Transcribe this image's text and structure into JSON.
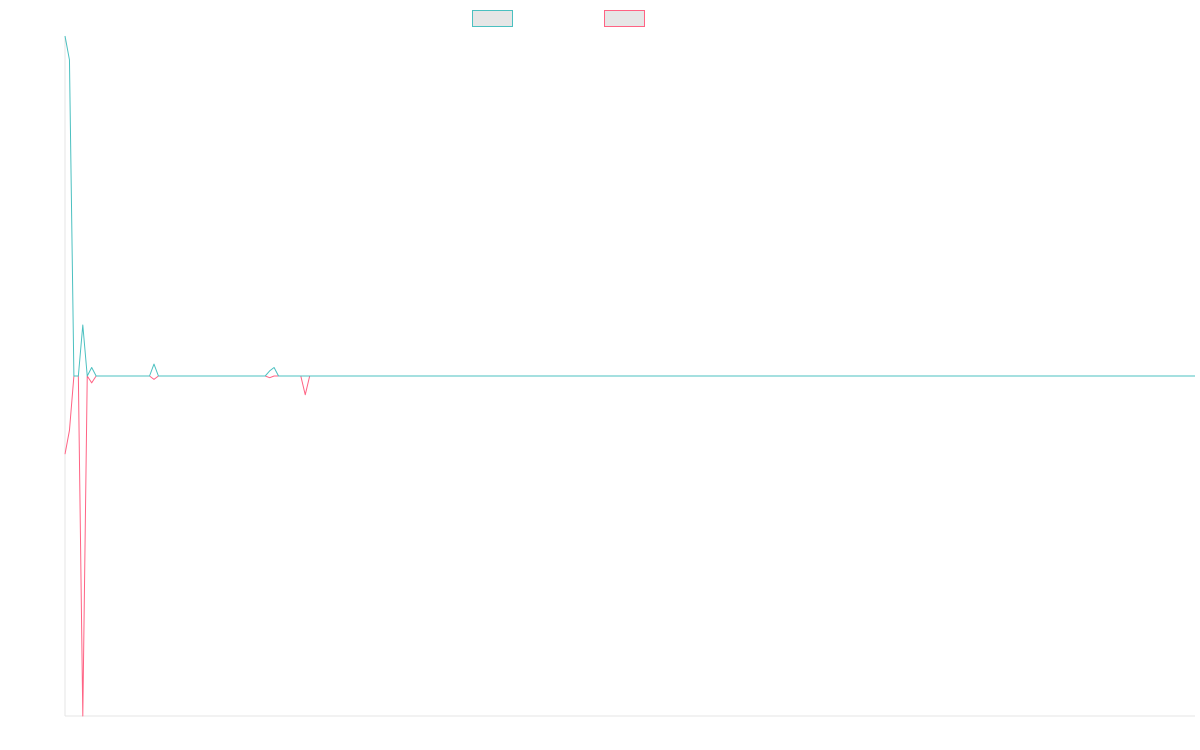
{
  "chart_data": {
    "type": "line",
    "title": "",
    "xlabel": "",
    "ylabel": "",
    "legend_placement": "top-center",
    "grid": false,
    "xlim": [
      0,
      254
    ],
    "ylim": [
      -1,
      1
    ],
    "colors": {
      "series_a": "#4bc0c0",
      "series_b": "#ff6384",
      "legend_fill": "#e6e6e6",
      "axis": "#e4e4e4"
    },
    "series": [
      {
        "key": "series_a",
        "values": [
          1.0,
          0.93,
          0.0,
          0.0,
          0.15,
          0.0,
          0.025,
          0.0,
          0.0,
          0.0,
          0.0,
          0.0,
          0.0,
          0.0,
          0.0,
          0.0,
          0.0,
          0.0,
          0.0,
          0.0,
          0.035,
          0.0,
          0.0,
          0.0,
          0.0,
          0.0,
          0.0,
          0.0,
          0.0,
          0.0,
          0.0,
          0.0,
          0.0,
          0.0,
          0.0,
          0.0,
          0.0,
          0.0,
          0.0,
          0.0,
          0.0,
          0.0,
          0.0,
          0.0,
          0.0,
          0.0,
          0.015,
          0.025,
          0.0,
          0.0,
          0.0,
          0.0,
          0.0,
          0.0,
          0.0,
          0.0,
          0.0,
          0.0,
          0.0,
          0.0
        ]
      },
      {
        "key": "series_b",
        "values": [
          -0.23,
          -0.16,
          0.0,
          0.0,
          -1.0,
          0.0,
          -0.02,
          0.0,
          0.0,
          0.0,
          0.0,
          0.0,
          0.0,
          0.0,
          0.0,
          0.0,
          0.0,
          0.0,
          0.0,
          0.0,
          -0.01,
          0.0,
          0.0,
          0.0,
          0.0,
          0.0,
          0.0,
          0.0,
          0.0,
          0.0,
          0.0,
          0.0,
          0.0,
          0.0,
          0.0,
          0.0,
          0.0,
          0.0,
          0.0,
          0.0,
          0.0,
          0.0,
          0.0,
          0.0,
          0.0,
          0.0,
          -0.005,
          0.0,
          0.0,
          0.0,
          0.0,
          0.0,
          0.0,
          0.0,
          -0.055,
          0.0,
          0.0,
          0.0,
          0.0,
          0.0
        ]
      }
    ]
  }
}
